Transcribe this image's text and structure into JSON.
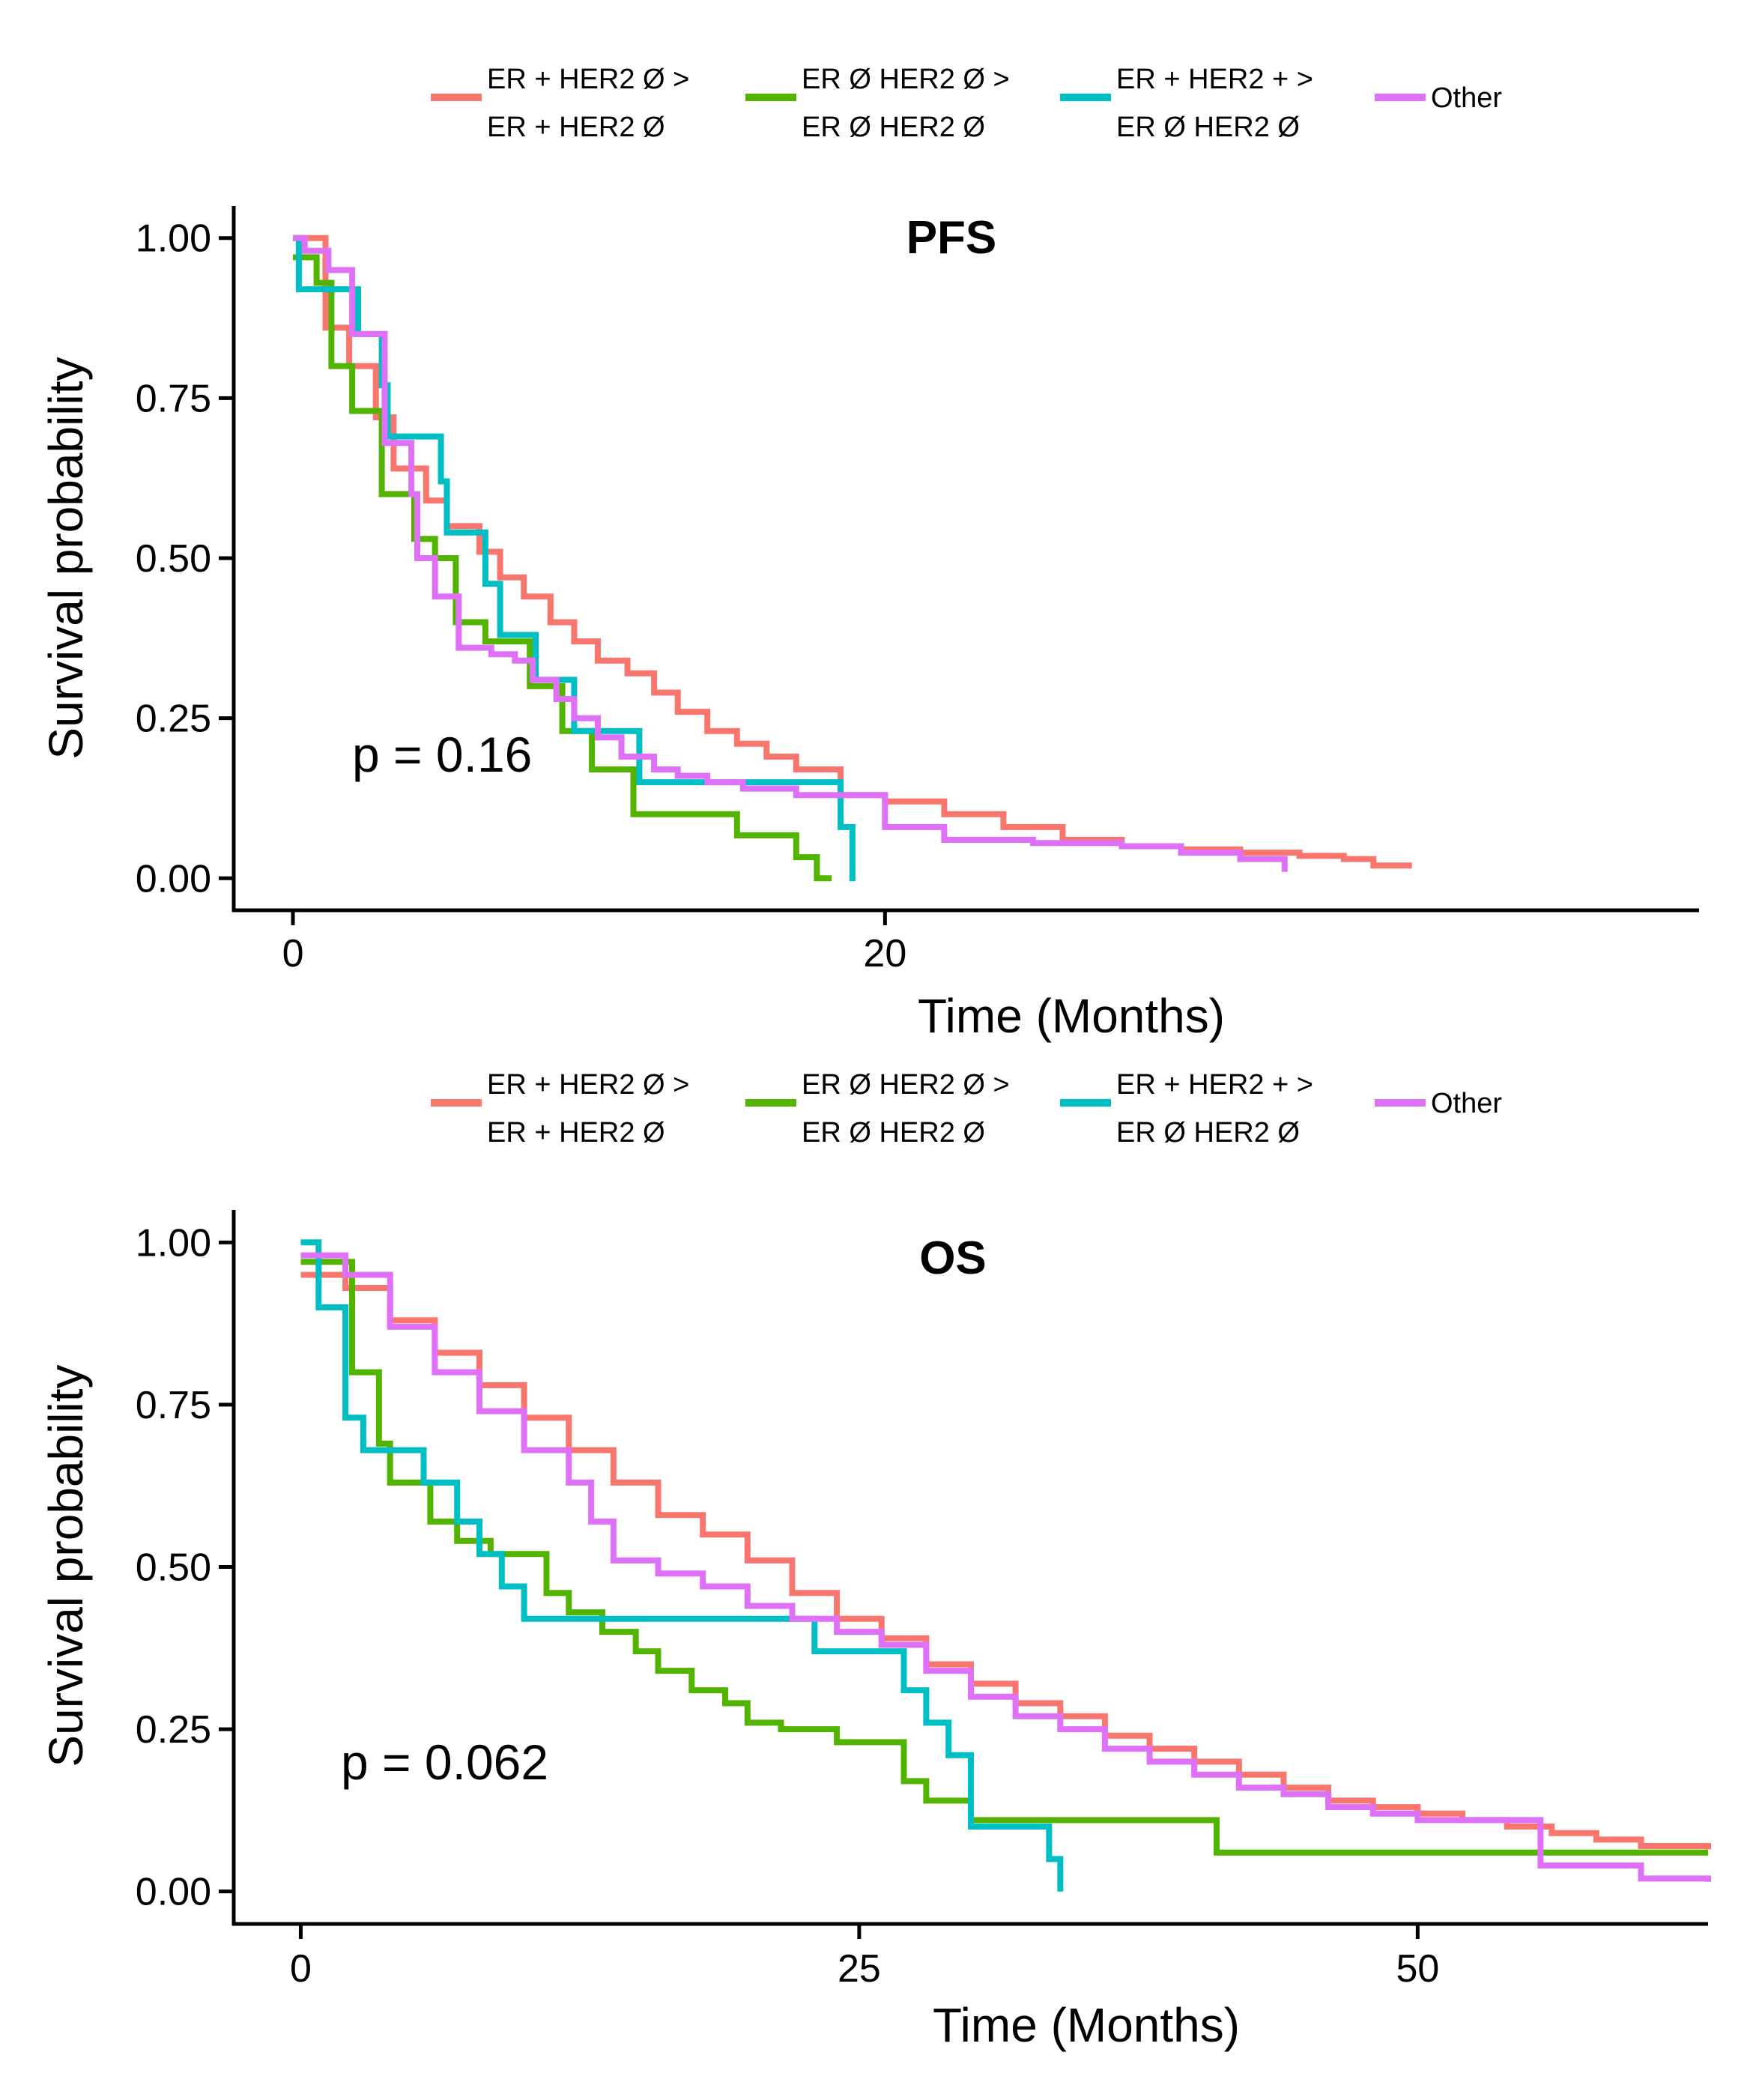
{
  "colors": {
    "er_pos_her2_neg": "#F8766D",
    "er_neg_her2_neg": "#53B400",
    "er_pos_her2_pos": "#00BFC4",
    "other": "#DF70F8"
  },
  "chart_data": [
    {
      "type": "line",
      "step": true,
      "title": "PFS",
      "xlabel": "Time (Months)",
      "ylabel": "Survival probability",
      "xlim": [
        -2,
        47.5
      ],
      "ylim": [
        -0.05,
        1.05
      ],
      "x_ticks": [
        "0",
        "20"
      ],
      "x_tick_values": [
        0,
        20
      ],
      "y_ticks": [
        "0.00",
        "0.25",
        "0.50",
        "0.75",
        "1.00"
      ],
      "y_tick_values": [
        0,
        0.25,
        0.5,
        0.75,
        1.0
      ],
      "pvalue": "p = 0.16",
      "legend": [
        {
          "line1": "ER + HER2 Ø >",
          "line2": "ER + HER2 Ø",
          "color_key": "er_pos_her2_neg"
        },
        {
          "line1": "ER Ø HER2 Ø >",
          "line2": "ER Ø HER2 Ø",
          "color_key": "er_neg_her2_neg"
        },
        {
          "line1": "ER + HER2 + >",
          "line2": "ER Ø HER2 Ø",
          "color_key": "er_pos_her2_pos"
        },
        {
          "line1": "Other",
          "line2": "",
          "color_key": "other"
        }
      ],
      "series": [
        {
          "name": "ER + HER2 Ø > ER + HER2 Ø",
          "color_key": "er_pos_her2_neg",
          "x": [
            0,
            1.1,
            1.9,
            2.8,
            3.4,
            4.5,
            5.2,
            6.3,
            7.0,
            7.8,
            8.7,
            9.5,
            10.3,
            11.3,
            12.2,
            13.0,
            14.0,
            15.0,
            16.0,
            17.0,
            18.5,
            20.0,
            22.0,
            24.0,
            26.0,
            28.0,
            30.0,
            32.0,
            34.0,
            35.5,
            36.5,
            37.8
          ],
          "y": [
            1.0,
            0.86,
            0.8,
            0.72,
            0.64,
            0.59,
            0.55,
            0.51,
            0.47,
            0.44,
            0.4,
            0.37,
            0.34,
            0.32,
            0.29,
            0.26,
            0.23,
            0.21,
            0.19,
            0.17,
            0.13,
            0.12,
            0.1,
            0.08,
            0.06,
            0.05,
            0.045,
            0.04,
            0.035,
            0.03,
            0.02,
            0.02
          ]
        },
        {
          "name": "ER Ø HER2 Ø > ER Ø HER2 Ø",
          "color_key": "er_neg_her2_neg",
          "x": [
            0,
            0.8,
            1.3,
            2.0,
            3.0,
            4.1,
            4.8,
            5.5,
            6.5,
            8.0,
            9.1,
            10.1,
            11.5,
            13.0,
            15.0,
            17.0,
            17.7,
            18.2
          ],
          "y": [
            0.97,
            0.93,
            0.8,
            0.73,
            0.6,
            0.53,
            0.5,
            0.4,
            0.37,
            0.3,
            0.23,
            0.17,
            0.1,
            0.1,
            0.067,
            0.033,
            0.0,
            0.0
          ]
        },
        {
          "name": "ER + HER2 + > ER Ø HER2 Ø",
          "color_key": "er_pos_her2_pos",
          "x": [
            0,
            0.2,
            0.8,
            2.0,
            2.2,
            3.0,
            3.2,
            5.0,
            5.2,
            5.8,
            6.5,
            7.0,
            7.5,
            8.2,
            9.5,
            10.0,
            11.0,
            11.7,
            12.3,
            13.5,
            15.0,
            17.0,
            18.0,
            18.5,
            18.9,
            19.0
          ],
          "y": [
            1.0,
            0.92,
            0.92,
            0.92,
            0.85,
            0.77,
            0.69,
            0.62,
            0.54,
            0.54,
            0.46,
            0.38,
            0.38,
            0.31,
            0.23,
            0.23,
            0.23,
            0.15,
            0.15,
            0.15,
            0.15,
            0.15,
            0.15,
            0.08,
            0.0,
            0.0
          ]
        },
        {
          "name": "Other",
          "color_key": "other",
          "x": [
            0,
            0.4,
            1.2,
            2.0,
            2.3,
            3.1,
            4.0,
            4.2,
            4.8,
            5.6,
            6.7,
            7.5,
            8.1,
            8.9,
            9.5,
            10.3,
            11.1,
            12.2,
            13.0,
            14.0,
            15.2,
            17.0,
            18.0,
            20.0,
            22.0,
            25.0,
            28.0,
            30.0,
            32.0,
            33.5
          ],
          "y": [
            1.0,
            0.98,
            0.95,
            0.85,
            0.85,
            0.68,
            0.6,
            0.5,
            0.44,
            0.36,
            0.35,
            0.34,
            0.31,
            0.28,
            0.25,
            0.22,
            0.19,
            0.17,
            0.16,
            0.15,
            0.14,
            0.13,
            0.13,
            0.08,
            0.06,
            0.055,
            0.05,
            0.04,
            0.03,
            0.01
          ]
        }
      ]
    },
    {
      "type": "line",
      "step": true,
      "title": "OS",
      "xlabel": "Time (Months)",
      "ylabel": "Survival probability",
      "xlim": [
        -3,
        63
      ],
      "ylim": [
        -0.05,
        1.05
      ],
      "x_ticks": [
        "0",
        "25",
        "50"
      ],
      "x_tick_values": [
        0,
        25,
        50
      ],
      "y_ticks": [
        "0.00",
        "0.25",
        "0.50",
        "0.75",
        "1.00"
      ],
      "y_tick_values": [
        0,
        0.25,
        0.5,
        0.75,
        1.0
      ],
      "pvalue": "p = 0.062",
      "legend": [
        {
          "line1": "ER + HER2 Ø >",
          "line2": "ER + HER2 Ø",
          "color_key": "er_pos_her2_neg"
        },
        {
          "line1": "ER Ø HER2 Ø >",
          "line2": "ER Ø HER2 Ø",
          "color_key": "er_neg_her2_neg"
        },
        {
          "line1": "ER + HER2 + >",
          "line2": "ER Ø HER2 Ø",
          "color_key": "er_pos_her2_pos"
        },
        {
          "line1": "Other",
          "line2": "",
          "color_key": "other"
        }
      ],
      "series": [
        {
          "name": "ER + HER2 Ø > ER + HER2 Ø",
          "color_key": "er_pos_her2_neg",
          "x": [
            0,
            2,
            4,
            6,
            8,
            10,
            12,
            14,
            16,
            18,
            20,
            22,
            24,
            26,
            28,
            30,
            32,
            34,
            36,
            38,
            40,
            42,
            44,
            46,
            48,
            50,
            52,
            54,
            56,
            58,
            60,
            63
          ],
          "y": [
            0.95,
            0.93,
            0.88,
            0.83,
            0.78,
            0.73,
            0.68,
            0.63,
            0.58,
            0.55,
            0.51,
            0.46,
            0.42,
            0.39,
            0.35,
            0.32,
            0.29,
            0.27,
            0.24,
            0.22,
            0.2,
            0.18,
            0.16,
            0.14,
            0.13,
            0.12,
            0.11,
            0.1,
            0.09,
            0.08,
            0.07,
            0.065
          ]
        },
        {
          "name": "ER Ø HER2 Ø > ER Ø HER2 Ø",
          "color_key": "er_neg_her2_neg",
          "x": [
            0,
            1.0,
            2.3,
            3.5,
            4.0,
            5.8,
            7.0,
            8.5,
            10.0,
            11.0,
            12.0,
            13.5,
            15.0,
            16.0,
            17.5,
            19.0,
            20.0,
            21.5,
            23.0,
            24.0,
            25.0,
            27.0,
            28.0,
            30.0,
            32.0,
            34.0,
            36.0,
            38.5,
            41.0,
            45.0,
            50.0,
            63.0
          ],
          "y": [
            0.97,
            0.97,
            0.8,
            0.69,
            0.63,
            0.57,
            0.54,
            0.52,
            0.52,
            0.46,
            0.43,
            0.4,
            0.37,
            0.34,
            0.31,
            0.29,
            0.26,
            0.25,
            0.25,
            0.23,
            0.23,
            0.17,
            0.14,
            0.11,
            0.11,
            0.11,
            0.11,
            0.11,
            0.06,
            0.06,
            0.06,
            0.06
          ]
        },
        {
          "name": "ER + HER2 + > ER Ø HER2 Ø",
          "color_key": "er_pos_her2_pos",
          "x": [
            0,
            0.8,
            2.0,
            2.8,
            4.0,
            5.5,
            7.0,
            8.0,
            9.0,
            10.0,
            11.3,
            13.0,
            16.0,
            20.0,
            23.0,
            25.0,
            27.0,
            28.0,
            29.0,
            30.0,
            31.2,
            32.0,
            33.5,
            34.0
          ],
          "y": [
            1.0,
            0.9,
            0.73,
            0.68,
            0.68,
            0.63,
            0.57,
            0.52,
            0.47,
            0.42,
            0.42,
            0.42,
            0.42,
            0.42,
            0.37,
            0.37,
            0.31,
            0.26,
            0.21,
            0.1,
            0.1,
            0.1,
            0.05,
            0.0
          ]
        },
        {
          "name": "Other",
          "color_key": "other",
          "x": [
            0,
            2,
            4,
            6,
            8,
            10,
            12,
            13,
            14,
            16,
            18,
            20,
            22,
            24,
            26,
            28,
            30,
            32,
            34,
            36,
            38,
            40,
            42,
            44,
            46,
            48,
            50,
            52,
            54,
            55.5,
            58,
            60,
            63
          ],
          "y": [
            0.98,
            0.95,
            0.87,
            0.8,
            0.74,
            0.68,
            0.63,
            0.57,
            0.51,
            0.49,
            0.47,
            0.44,
            0.42,
            0.4,
            0.38,
            0.34,
            0.3,
            0.27,
            0.25,
            0.22,
            0.2,
            0.18,
            0.16,
            0.15,
            0.13,
            0.12,
            0.11,
            0.11,
            0.11,
            0.04,
            0.04,
            0.02,
            0.015
          ]
        }
      ]
    }
  ]
}
